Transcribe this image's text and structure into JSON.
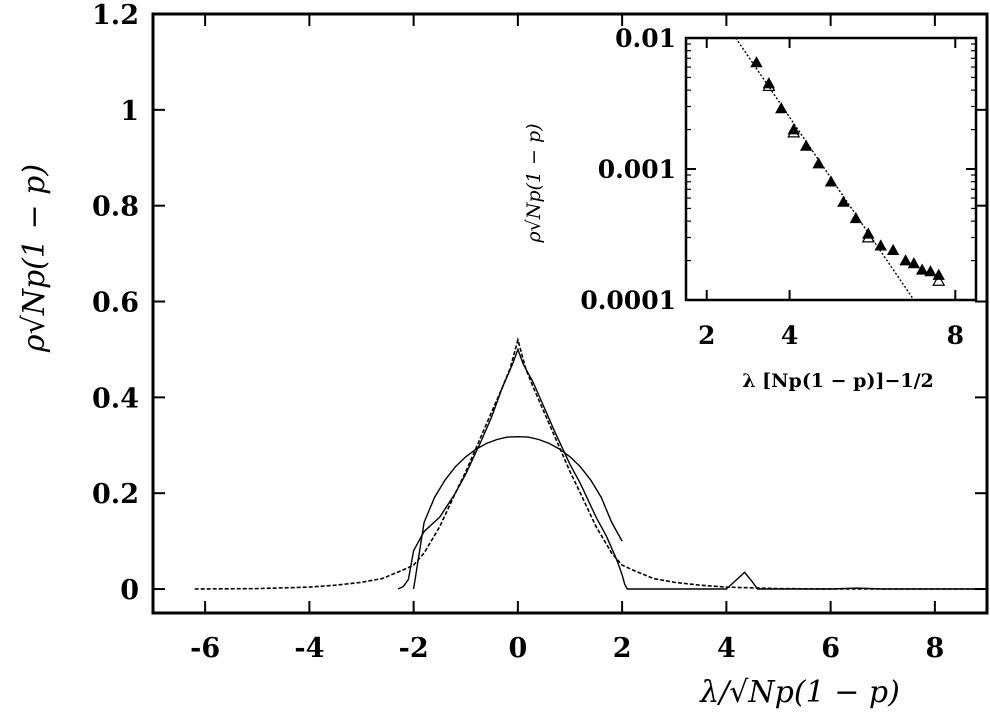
{
  "chart_data": [
    {
      "type": "line",
      "xlabel": "λ/√Np(1 − p)",
      "ylabel": "ρ√Np(1 − p)",
      "xlim": [
        -7,
        9
      ],
      "ylim": [
        -0.05,
        1.2
      ],
      "xticks": [
        "-6",
        "-4",
        "-2",
        "0",
        "2",
        "4",
        "8",
        "6"
      ],
      "xtick_values": [
        -6,
        -4,
        -2,
        0,
        2,
        4,
        8,
        6
      ],
      "yticks": [
        "0",
        "0.2",
        "0.4",
        "0.6",
        "0.8",
        "1",
        "1.2"
      ],
      "ytick_values": [
        0,
        0.2,
        0.4,
        0.6,
        0.8,
        1,
        1.2
      ],
      "grid": false,
      "legend": "none",
      "series": [
        {
          "style": "dashed",
          "x": [
            -6.2,
            -5,
            -4,
            -3.5,
            -3,
            -2.6,
            -2.2,
            -2,
            -1.8,
            -1.5,
            -1.2,
            -1,
            -0.7,
            -0.5,
            -0.3,
            -0.15,
            -0.05,
            0,
            0.05,
            0.15,
            0.3,
            0.5,
            0.7,
            1,
            1.2,
            1.5,
            1.8,
            2,
            2.2,
            2.6,
            3,
            3.5,
            4,
            5,
            6,
            7,
            8,
            9
          ],
          "y": [
            0,
            0.001,
            0.004,
            0.008,
            0.014,
            0.022,
            0.04,
            0.05,
            0.075,
            0.13,
            0.2,
            0.245,
            0.32,
            0.37,
            0.42,
            0.46,
            0.5,
            0.52,
            0.5,
            0.46,
            0.42,
            0.37,
            0.32,
            0.245,
            0.2,
            0.13,
            0.075,
            0.05,
            0.04,
            0.022,
            0.014,
            0.008,
            0.004,
            0.001,
            0,
            0,
            0,
            0
          ]
        },
        {
          "style": "solid",
          "x": [
            -2.3,
            -2.2,
            -2.1,
            -2,
            -1.8,
            -1.5,
            -1.2,
            -1,
            -0.7,
            -0.5,
            -0.3,
            -0.1,
            0,
            0.1,
            0.3,
            0.5,
            0.7,
            1,
            1.2,
            1.5,
            1.7,
            1.9,
            2,
            2.05,
            2.1,
            3,
            4,
            4.2,
            4.35,
            4.5,
            4.6,
            5,
            6,
            6.5,
            7,
            9
          ],
          "y": [
            0,
            0.005,
            0.02,
            0.08,
            0.12,
            0.15,
            0.2,
            0.24,
            0.31,
            0.36,
            0.42,
            0.47,
            0.5,
            0.47,
            0.43,
            0.38,
            0.33,
            0.26,
            0.22,
            0.15,
            0.11,
            0.06,
            0.03,
            0.01,
            0,
            0,
            0,
            0.02,
            0.035,
            0.015,
            0,
            0,
            0,
            0.002,
            0,
            0
          ]
        },
        {
          "style": "semicircle",
          "x": [
            -2,
            -1.8,
            -1.6,
            -1.4,
            -1.2,
            -1,
            -0.8,
            -0.6,
            -0.4,
            -0.2,
            0,
            0.2,
            0.4,
            0.6,
            0.8,
            1,
            1.2,
            1.4,
            1.6,
            1.8,
            2
          ],
          "y": [
            0,
            0.139,
            0.191,
            0.227,
            0.255,
            0.276,
            0.292,
            0.304,
            0.312,
            0.317,
            0.318,
            0.317,
            0.312,
            0.304,
            0.292,
            0.276,
            0.255,
            0.227,
            0.191,
            0.139,
            0.1
          ]
        }
      ]
    },
    {
      "type": "scatter",
      "xlabel": "λ [Np(1 − p)]−1/2",
      "ylabel": "ρ√Np(1 − p)",
      "xlim": [
        1.5,
        8.5
      ],
      "ylim": [
        0.0001,
        0.01
      ],
      "yscale": "log",
      "xticks": [
        "2",
        "4",
        "8"
      ],
      "xtick_values": [
        2,
        4,
        8
      ],
      "yticks": [
        "0.01",
        "0.001",
        "0.0001"
      ],
      "ytick_values": [
        0.01,
        0.001,
        0.0001
      ],
      "grid": false,
      "legend": "none",
      "series": [
        {
          "style": "filled-triangle",
          "x": [
            3.2,
            3.5,
            3.8,
            4.1,
            4.4,
            4.7,
            5.0,
            5.3,
            5.6,
            5.9,
            6.2,
            6.5,
            6.8,
            7.0,
            7.2,
            7.4,
            7.6
          ],
          "y": [
            0.0065,
            0.0045,
            0.0029,
            0.002,
            0.0015,
            0.0011,
            0.0008,
            0.00056,
            0.00042,
            0.00032,
            0.00026,
            0.00024,
            0.0002,
            0.00019,
            0.00017,
            0.000165,
            0.000155
          ]
        },
        {
          "style": "open-triangle",
          "x": [
            3.5,
            4.1,
            5.9,
            7.6
          ],
          "y": [
            0.0043,
            0.0019,
            0.0003,
            0.00014
          ]
        },
        {
          "style": "dotted-line",
          "x": [
            2.7,
            7.0
          ],
          "y": [
            0.01,
            0.0001
          ]
        }
      ]
    }
  ]
}
